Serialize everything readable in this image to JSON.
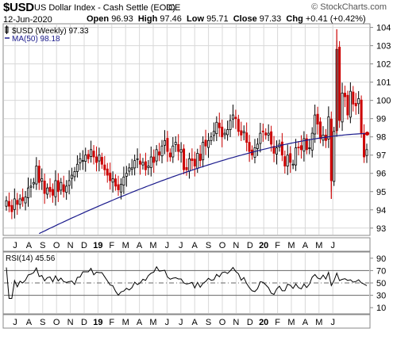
{
  "header": {
    "symbol": "$USD",
    "description": "US Dollar Index - Cash Settle (EOD)",
    "exchange": "ICE",
    "brand": "© StockCharts.com",
    "date": "12-Jun-2020",
    "open_label": "Open",
    "open_value": "96.93",
    "high_label": "High",
    "high_value": "97.46",
    "low_label": "Low",
    "low_value": "95.71",
    "close_label": "Close",
    "close_value": "97.33",
    "chg_label": "Chg",
    "chg_value": "+0.41 (+0.42%)"
  },
  "colors": {
    "up_candle": "#000000",
    "down_candle": "#cc0000",
    "ma_line": "#1a1a8c",
    "rsi_line": "#000000",
    "grid": "#d8d8d8"
  },
  "chart_data": [
    {
      "type": "candlestick",
      "legend": [
        {
          "label": "$USD (Weekly) 97.33",
          "color": "#000000"
        },
        {
          "label": "MA(50) 98.18",
          "color": "#1a1a8c"
        }
      ],
      "ylim": [
        92.6,
        104.2
      ],
      "yticks": [
        93,
        94,
        95,
        96,
        97,
        98,
        99,
        100,
        101,
        102,
        103,
        104
      ],
      "y_axis_side": "right",
      "grid": true,
      "x_ticks": [
        "J",
        "A",
        "S",
        "O",
        "N",
        "D",
        "19",
        "F",
        "M",
        "A",
        "M",
        "J",
        "J",
        "A",
        "S",
        "O",
        "N",
        "D",
        "20",
        "F",
        "M",
        "A",
        "M",
        "J"
      ],
      "closes": [
        94.5,
        94.2,
        93.9,
        94.6,
        94.3,
        94.6,
        94.5,
        94.7,
        95.2,
        95.3,
        95.5,
        96.4,
        95.5,
        95.7,
        94.9,
        95.2,
        95.0,
        94.8,
        95.6,
        95.0,
        95.5,
        95.0,
        95.3,
        95.6,
        95.9,
        96.1,
        96.5,
        96.8,
        96.7,
        97.0,
        96.8,
        97.3,
        96.9,
        96.6,
        97.0,
        96.5,
        96.2,
        95.9,
        95.6,
        95.7,
        95.3,
        95.1,
        95.4,
        95.8,
        96.0,
        96.3,
        96.3,
        96.7,
        96.8,
        96.5,
        96.6,
        96.2,
        96.4,
        96.9,
        96.6,
        97.3,
        97.0,
        97.5,
        97.8,
        97.2,
        96.9,
        97.5,
        97.7,
        97.2,
        97.3,
        96.2,
        96.2,
        96.8,
        96.7,
        96.4,
        97.1,
        96.7,
        97.7,
        97.5,
        97.8,
        98.0,
        98.3,
        98.8,
        98.5,
        98.0,
        98.2,
        98.4,
        98.9,
        99.2,
        99.0,
        98.3,
        98.1,
        98.3,
        97.7,
        97.2,
        97.0,
        97.4,
        97.6,
        98.2,
        98.3,
        98.1,
        98.2,
        97.6,
        97.1,
        97.4,
        97.6,
        97.0,
        96.4,
        97.0,
        96.6,
        96.5,
        97.4,
        97.4,
        97.3,
        97.9,
        97.3,
        97.4,
        98.2,
        99.2,
        98.7,
        97.9,
        98.1,
        97.8,
        99.1,
        95.6,
        98.3,
        102.8,
        98.9,
        100.4,
        100.2,
        99.2,
        100.5,
        99.8,
        99.7,
        100.1,
        98.2,
        96.9,
        97.3
      ],
      "ma50_start": 92.7,
      "ma50_end": 98.18
    },
    {
      "type": "line",
      "legend": [
        {
          "label": "RSI(14) 45.56",
          "color": "#000000"
        }
      ],
      "ylim": [
        0,
        100
      ],
      "yticks": [
        10,
        30,
        50,
        70,
        90
      ],
      "reference_lines": [
        70,
        50,
        30
      ],
      "y_axis_side": "right",
      "x_ticks": [
        "J",
        "A",
        "S",
        "O",
        "N",
        "D",
        "19",
        "F",
        "M",
        "A",
        "M",
        "J",
        "J",
        "A",
        "S",
        "O",
        "N",
        "D",
        "20",
        "F",
        "M",
        "A",
        "M",
        "J"
      ],
      "end_value": 45.56
    }
  ]
}
